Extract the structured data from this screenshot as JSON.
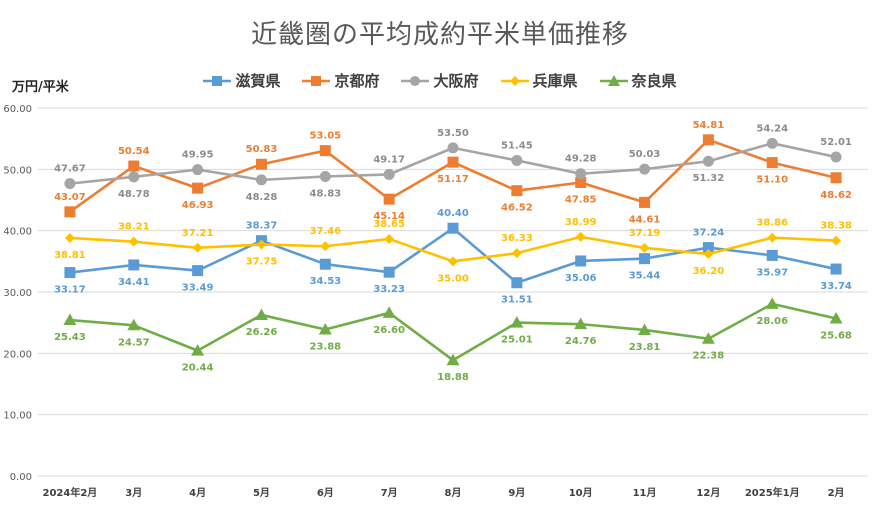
{
  "chart_data": {
    "type": "line",
    "title": "近畿圏の平均成約平米単価推移",
    "ylabel": "万円/平米",
    "xlabel": "",
    "categories": [
      "2024年2月",
      "3月",
      "4月",
      "5月",
      "6月",
      "7月",
      "8月",
      "9月",
      "10月",
      "11月",
      "12月",
      "2025年1月",
      "2月"
    ],
    "ylim": [
      0,
      60
    ],
    "yticks": [
      "0.00",
      "10.00",
      "20.00",
      "30.00",
      "40.00",
      "50.00",
      "60.00"
    ],
    "grid": true,
    "legend_position": "top",
    "series": [
      {
        "name": "滋賀県",
        "color": "#5B9BD5",
        "marker": "square",
        "values": [
          33.17,
          34.41,
          33.49,
          38.37,
          34.53,
          33.23,
          40.4,
          31.51,
          35.06,
          35.44,
          37.24,
          35.97,
          33.74
        ],
        "labels": [
          "33.17",
          "34.41",
          "33.49",
          "38.37",
          "34.53",
          "33.23",
          "40.40",
          "31.51",
          "35.06",
          "35.44",
          "37.24",
          "35.97",
          "33.74"
        ]
      },
      {
        "name": "京都府",
        "color": "#ED7D31",
        "marker": "square",
        "values": [
          43.07,
          50.54,
          46.93,
          50.83,
          53.05,
          45.14,
          51.17,
          46.52,
          47.85,
          44.61,
          54.81,
          51.1,
          48.62
        ],
        "labels": [
          "43.07",
          "50.54",
          "46.93",
          "50.83",
          "53.05",
          "45.14",
          "51.17",
          "46.52",
          "47.85",
          "44.61",
          "54.81",
          "51.10",
          "48.62"
        ]
      },
      {
        "name": "大阪府",
        "color": "#A5A5A5",
        "marker": "circle",
        "values": [
          47.67,
          48.78,
          49.95,
          48.28,
          48.83,
          49.17,
          53.5,
          51.45,
          49.28,
          50.03,
          51.32,
          54.24,
          52.01
        ],
        "labels": [
          "47.67",
          "48.78",
          "49.95",
          "48.28",
          "48.83",
          "49.17",
          "53.50",
          "51.45",
          "49.28",
          "50.03",
          "51.32",
          "54.24",
          "52.01"
        ]
      },
      {
        "name": "兵庫県",
        "color": "#FFC000",
        "marker": "diamond",
        "values": [
          38.81,
          38.21,
          37.21,
          37.75,
          37.46,
          38.65,
          35.0,
          36.33,
          38.99,
          37.19,
          36.2,
          38.86,
          38.38
        ],
        "labels": [
          "38.81",
          "38.21",
          "37.21",
          "37.75",
          "37.46",
          "38.65",
          "35.00",
          "36.33",
          "38.99",
          "37.19",
          "36.20",
          "38.86",
          "38.38"
        ]
      },
      {
        "name": "奈良県",
        "color": "#70AD47",
        "marker": "triangle",
        "values": [
          25.43,
          24.57,
          20.44,
          26.26,
          23.88,
          26.6,
          18.88,
          25.01,
          24.76,
          23.81,
          22.38,
          28.06,
          25.68
        ],
        "labels": [
          "25.43",
          "24.57",
          "20.44",
          "26.26",
          "23.88",
          "26.60",
          "18.88",
          "25.01",
          "24.76",
          "23.81",
          "22.38",
          "28.06",
          "25.68"
        ]
      }
    ]
  }
}
